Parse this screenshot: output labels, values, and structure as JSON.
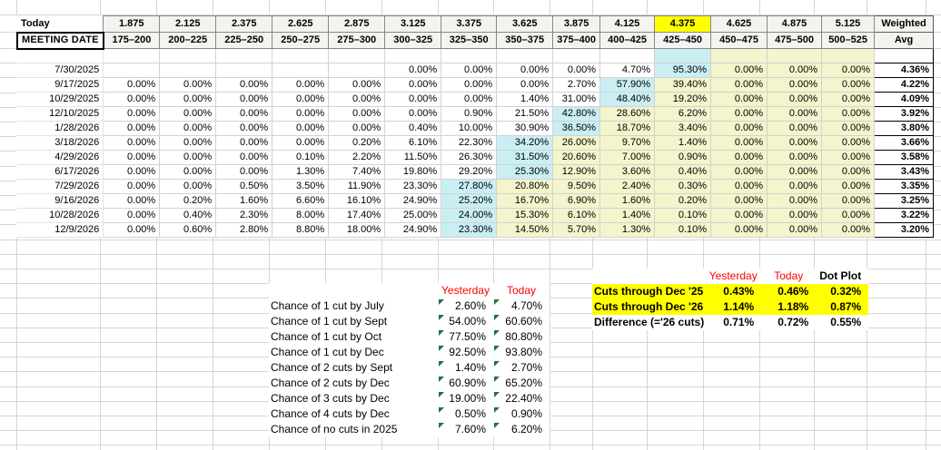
{
  "sheet": {
    "top_label": "Today",
    "row_header": "MEETING DATE",
    "weighted_header_line1": "Weighted",
    "weighted_header_line2": "Avg",
    "highlight_rate": "4.375",
    "rates": [
      "1.875",
      "2.125",
      "2.375",
      "2.625",
      "2.875",
      "3.125",
      "3.375",
      "3.625",
      "3.875",
      "4.125",
      "4.375",
      "4.625",
      "4.875",
      "5.125"
    ],
    "ranges": [
      "175–200",
      "200–225",
      "225–250",
      "250–275",
      "275–300",
      "300–325",
      "325–350",
      "350–375",
      "375–400",
      "400–425",
      "425–450",
      "450–475",
      "475–500",
      "500–525"
    ],
    "blank_row_bgs": [
      "",
      "",
      "",
      "",
      "",
      "",
      "",
      "",
      "",
      "",
      "c",
      "y",
      "y",
      "y"
    ],
    "rows": [
      {
        "date": "7/30/2025",
        "values": [
          "",
          "",
          "",
          "",
          "",
          "0.00%",
          "0.00%",
          "0.00%",
          "0.00%",
          "4.70%",
          "95.30%",
          "0.00%",
          "0.00%",
          "0.00%"
        ],
        "bgs": [
          "",
          "",
          "",
          "",
          "",
          "",
          "",
          "",
          "",
          "",
          "c",
          "y",
          "y",
          "y"
        ],
        "avg": "4.36%"
      },
      {
        "date": "9/17/2025",
        "values": [
          "0.00%",
          "0.00%",
          "0.00%",
          "0.00%",
          "0.00%",
          "0.00%",
          "0.00%",
          "0.00%",
          "2.70%",
          "57.90%",
          "39.40%",
          "0.00%",
          "0.00%",
          "0.00%"
        ],
        "bgs": [
          "",
          "",
          "",
          "",
          "",
          "",
          "",
          "",
          "",
          "c",
          "y",
          "y",
          "y",
          "y"
        ],
        "avg": "4.22%"
      },
      {
        "date": "10/29/2025",
        "values": [
          "0.00%",
          "0.00%",
          "0.00%",
          "0.00%",
          "0.00%",
          "0.00%",
          "0.00%",
          "1.40%",
          "31.00%",
          "48.40%",
          "19.20%",
          "0.00%",
          "0.00%",
          "0.00%"
        ],
        "bgs": [
          "",
          "",
          "",
          "",
          "",
          "",
          "",
          "",
          "",
          "c",
          "y",
          "y",
          "y",
          "y"
        ],
        "avg": "4.09%"
      },
      {
        "date": "12/10/2025",
        "values": [
          "0.00%",
          "0.00%",
          "0.00%",
          "0.00%",
          "0.00%",
          "0.00%",
          "0.90%",
          "21.50%",
          "42.80%",
          "28.60%",
          "6.20%",
          "0.00%",
          "0.00%",
          "0.00%"
        ],
        "bgs": [
          "",
          "",
          "",
          "",
          "",
          "",
          "",
          "",
          "c",
          "y",
          "y",
          "y",
          "y",
          "y"
        ],
        "avg": "3.92%"
      },
      {
        "date": "1/28/2026",
        "values": [
          "0.00%",
          "0.00%",
          "0.00%",
          "0.00%",
          "0.00%",
          "0.40%",
          "10.00%",
          "30.90%",
          "36.50%",
          "18.70%",
          "3.40%",
          "0.00%",
          "0.00%",
          "0.00%"
        ],
        "bgs": [
          "",
          "",
          "",
          "",
          "",
          "",
          "",
          "",
          "c",
          "y",
          "y",
          "y",
          "y",
          "y"
        ],
        "avg": "3.80%"
      },
      {
        "date": "3/18/2026",
        "values": [
          "0.00%",
          "0.00%",
          "0.00%",
          "0.00%",
          "0.20%",
          "6.10%",
          "22.30%",
          "34.20%",
          "26.00%",
          "9.70%",
          "1.40%",
          "0.00%",
          "0.00%",
          "0.00%"
        ],
        "bgs": [
          "",
          "",
          "",
          "",
          "",
          "",
          "",
          "c",
          "y",
          "y",
          "y",
          "y",
          "y",
          "y"
        ],
        "avg": "3.66%"
      },
      {
        "date": "4/29/2026",
        "values": [
          "0.00%",
          "0.00%",
          "0.00%",
          "0.10%",
          "2.20%",
          "11.50%",
          "26.30%",
          "31.50%",
          "20.60%",
          "7.00%",
          "0.90%",
          "0.00%",
          "0.00%",
          "0.00%"
        ],
        "bgs": [
          "",
          "",
          "",
          "",
          "",
          "",
          "",
          "c",
          "y",
          "y",
          "y",
          "y",
          "y",
          "y"
        ],
        "avg": "3.58%"
      },
      {
        "date": "6/17/2026",
        "values": [
          "0.00%",
          "0.00%",
          "0.00%",
          "1.30%",
          "7.40%",
          "19.80%",
          "29.20%",
          "25.30%",
          "12.90%",
          "3.60%",
          "0.40%",
          "0.00%",
          "0.00%",
          "0.00%"
        ],
        "bgs": [
          "",
          "",
          "",
          "",
          "",
          "",
          "",
          "c",
          "y",
          "y",
          "y",
          "y",
          "y",
          "y"
        ],
        "avg": "3.43%"
      },
      {
        "date": "7/29/2026",
        "values": [
          "0.00%",
          "0.00%",
          "0.50%",
          "3.50%",
          "11.90%",
          "23.30%",
          "27.80%",
          "20.80%",
          "9.50%",
          "2.40%",
          "0.30%",
          "0.00%",
          "0.00%",
          "0.00%"
        ],
        "bgs": [
          "",
          "",
          "",
          "",
          "",
          "",
          "c",
          "y",
          "y",
          "y",
          "y",
          "y",
          "y",
          "y"
        ],
        "avg": "3.35%"
      },
      {
        "date": "9/16/2026",
        "values": [
          "0.00%",
          "0.20%",
          "1.60%",
          "6.60%",
          "16.10%",
          "24.90%",
          "25.20%",
          "16.70%",
          "6.90%",
          "1.60%",
          "0.20%",
          "0.00%",
          "0.00%",
          "0.00%"
        ],
        "bgs": [
          "",
          "",
          "",
          "",
          "",
          "",
          "c",
          "y",
          "y",
          "y",
          "y",
          "y",
          "y",
          "y"
        ],
        "avg": "3.25%"
      },
      {
        "date": "10/28/2026",
        "values": [
          "0.00%",
          "0.40%",
          "2.30%",
          "8.00%",
          "17.40%",
          "25.00%",
          "24.00%",
          "15.30%",
          "6.10%",
          "1.40%",
          "0.10%",
          "0.00%",
          "0.00%",
          "0.00%"
        ],
        "bgs": [
          "",
          "",
          "",
          "",
          "",
          "",
          "c",
          "y",
          "y",
          "y",
          "y",
          "y",
          "y",
          "y"
        ],
        "avg": "3.22%"
      },
      {
        "date": "12/9/2026",
        "values": [
          "0.00%",
          "0.60%",
          "2.80%",
          "8.80%",
          "18.00%",
          "24.90%",
          "23.30%",
          "14.50%",
          "5.70%",
          "1.30%",
          "0.10%",
          "0.00%",
          "0.00%",
          "0.00%"
        ],
        "bgs": [
          "",
          "",
          "",
          "",
          "",
          "",
          "c",
          "y",
          "y",
          "y",
          "y",
          "y",
          "y",
          "y"
        ],
        "avg": "3.20%"
      }
    ]
  },
  "cut_chances": {
    "headers": {
      "yesterday": "Yesterday",
      "today": "Today"
    },
    "rows": [
      {
        "label": "Chance of 1 cut by July",
        "yesterday": "2.60%",
        "today": "4.70%"
      },
      {
        "label": "Chance of 1 cut by Sept",
        "yesterday": "54.00%",
        "today": "60.60%"
      },
      {
        "label": "Chance of 1 cut by Oct",
        "yesterday": "77.50%",
        "today": "80.80%"
      },
      {
        "label": "Chance of 1 cut by Dec",
        "yesterday": "92.50%",
        "today": "93.80%"
      },
      {
        "label": "Chance of 2 cuts by Sept",
        "yesterday": "1.40%",
        "today": "2.70%"
      },
      {
        "label": "Chance of 2 cuts by Dec",
        "yesterday": "60.90%",
        "today": "65.20%"
      },
      {
        "label": "Chance of 3 cuts by Dec",
        "yesterday": "19.00%",
        "today": "22.40%"
      },
      {
        "label": "Chance of 4 cuts by Dec",
        "yesterday": "0.50%",
        "today": "0.90%"
      },
      {
        "label": "Chance of no cuts in 2025",
        "yesterday": "7.60%",
        "today": "6.20%"
      }
    ]
  },
  "cuts_summary": {
    "headers": {
      "yesterday": "Yesterday",
      "today": "Today",
      "dot_plot": "Dot Plot"
    },
    "rows": [
      {
        "label": "Cuts through Dec '25",
        "yesterday": "0.43%",
        "today": "0.46%",
        "dot_plot": "0.32%",
        "highlight": true
      },
      {
        "label": "Cuts through Dec '26",
        "yesterday": "1.14%",
        "today": "1.18%",
        "dot_plot": "0.87%",
        "highlight": true
      },
      {
        "label": "Difference (='26 cuts)",
        "yesterday": "0.71%",
        "today": "0.72%",
        "dot_plot": "0.55%",
        "highlight": false
      }
    ]
  },
  "colors": {
    "modal_cell_cyan": "#c9eef4",
    "upper_band_yellow": "#f4f4cd",
    "selected_rate_yellow": "#ffff00",
    "summary_highlight_yellow": "#ffff00",
    "accent_red": "#ff0000",
    "flag_triangle_green": "#1f7246"
  }
}
